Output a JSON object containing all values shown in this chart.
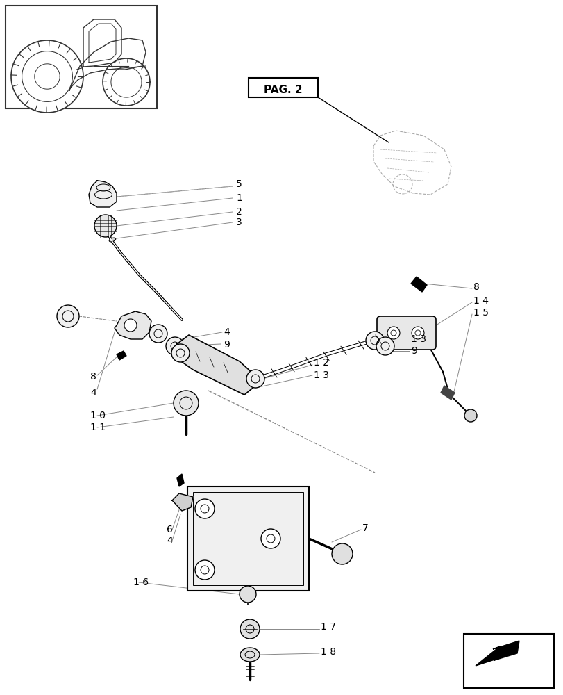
{
  "background_color": "#ffffff",
  "line_color": "#000000",
  "leader_color": "#888888",
  "fig_width": 8.12,
  "fig_height": 10.0,
  "dpi": 100
}
